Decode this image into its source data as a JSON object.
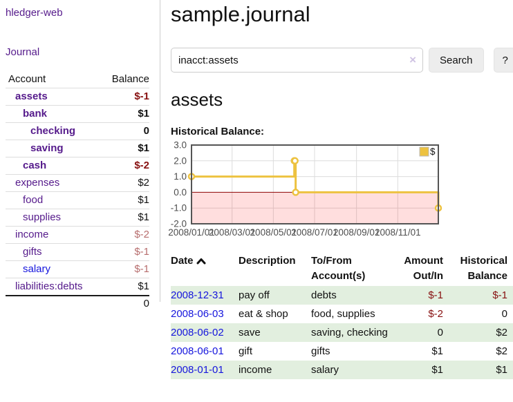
{
  "colors": {
    "purple": "#551a8b",
    "link_blue": "#1515dd",
    "negative_strong": "#871010",
    "negative_soft": "#b76e6e",
    "row_green": "#e2efdf",
    "chart_line": "#edc240",
    "chart_border": "#545454",
    "chart_grid": "#dcdcdc",
    "chart_zero_line": "#8b0000",
    "chart_negative_fill": "rgba(255,0,0,0.13)",
    "chart_tick_text": "#4d4d4d"
  },
  "sidebar": {
    "app_title": "hledger-web",
    "journal_label": "Journal",
    "table": {
      "headers": {
        "account": "Account",
        "balance": "Balance"
      },
      "rows": [
        {
          "name": "assets",
          "indent": 1,
          "bold": true,
          "balance": "$-1",
          "negative": true,
          "soft": false,
          "blue": false
        },
        {
          "name": "bank",
          "indent": 2,
          "bold": true,
          "balance": "$1",
          "negative": false,
          "soft": false,
          "blue": false
        },
        {
          "name": "checking",
          "indent": 3,
          "bold": true,
          "balance": "0",
          "negative": false,
          "soft": false,
          "blue": false
        },
        {
          "name": "saving",
          "indent": 3,
          "bold": true,
          "balance": "$1",
          "negative": false,
          "soft": false,
          "blue": false
        },
        {
          "name": "cash",
          "indent": 2,
          "bold": true,
          "balance": "$-2",
          "negative": true,
          "soft": false,
          "blue": false
        },
        {
          "name": "expenses",
          "indent": 1,
          "bold": false,
          "balance": "$2",
          "negative": false,
          "soft": false,
          "blue": false
        },
        {
          "name": "food",
          "indent": 2,
          "bold": false,
          "balance": "$1",
          "negative": false,
          "soft": false,
          "blue": false
        },
        {
          "name": "supplies",
          "indent": 2,
          "bold": false,
          "balance": "$1",
          "negative": false,
          "soft": false,
          "blue": false
        },
        {
          "name": "income",
          "indent": 1,
          "bold": false,
          "balance": "$-2",
          "negative": true,
          "soft": true,
          "blue": false
        },
        {
          "name": "gifts",
          "indent": 2,
          "bold": false,
          "balance": "$-1",
          "negative": true,
          "soft": true,
          "blue": false
        },
        {
          "name": "salary",
          "indent": 2,
          "bold": false,
          "balance": "$-1",
          "negative": true,
          "soft": true,
          "blue": true
        },
        {
          "name": "liabilities:debts",
          "indent": 1,
          "bold": false,
          "balance": "$1",
          "negative": false,
          "soft": false,
          "blue": false
        }
      ],
      "total": "0"
    }
  },
  "main": {
    "title": "sample.journal",
    "account_heading": "assets",
    "chart_label": "Historical Balance:"
  },
  "search": {
    "value": "inacct:assets",
    "clear_icon": "×",
    "button_label": "Search",
    "help_label": "?"
  },
  "chart_data": {
    "type": "line",
    "title": "Historical Balance",
    "step": true,
    "legend": [
      {
        "label": "$",
        "color": "#edc240"
      }
    ],
    "legend_position": "top-right",
    "grid": true,
    "y_ticks": [
      "3.0",
      "2.0",
      "1.0",
      "0.0",
      "-1.0",
      "-2.0"
    ],
    "y_range": [
      -2,
      3
    ],
    "x_ticks": [
      {
        "label": "2008/01/01",
        "day": 0
      },
      {
        "label": "2008/03/01",
        "day": 60
      },
      {
        "label": "2008/05/01",
        "day": 121
      },
      {
        "label": "2008/07/01",
        "day": 182
      },
      {
        "label": "2008/09/01",
        "day": 244
      },
      {
        "label": "2008/11/01",
        "day": 305
      }
    ],
    "x_range_days": [
      0,
      365
    ],
    "negative_region_shaded": true,
    "points": [
      {
        "date": "2008-01-01",
        "day": 0,
        "value": 1
      },
      {
        "date": "2008-06-01",
        "day": 152,
        "value": 2
      },
      {
        "date": "2008-06-02",
        "day": 153,
        "value": 2
      },
      {
        "date": "2008-06-03",
        "day": 154,
        "value": 0
      },
      {
        "date": "2008-12-31",
        "day": 365,
        "value": -1
      }
    ]
  },
  "register": {
    "headers": {
      "date": "Date",
      "description": "Description",
      "tofrom1": "To/From",
      "tofrom2": "Account(s)",
      "amount1": "Amount",
      "amount2": "Out/In",
      "balance1": "Historical",
      "balance2": "Balance"
    },
    "rows": [
      {
        "date": "2008-12-31",
        "description": "pay off",
        "accounts": "debts",
        "amount": "$-1",
        "amount_negative": true,
        "balance": "$-1",
        "balance_negative": true
      },
      {
        "date": "2008-06-03",
        "description": "eat & shop",
        "accounts": "food, supplies",
        "amount": "$-2",
        "amount_negative": true,
        "balance": "0",
        "balance_negative": false
      },
      {
        "date": "2008-06-02",
        "description": "save",
        "accounts": "saving, checking",
        "amount": "0",
        "amount_negative": false,
        "balance": "$2",
        "balance_negative": false
      },
      {
        "date": "2008-06-01",
        "description": "gift",
        "accounts": "gifts",
        "amount": "$1",
        "amount_negative": false,
        "balance": "$2",
        "balance_negative": false
      },
      {
        "date": "2008-01-01",
        "description": "income",
        "accounts": "salary",
        "amount": "$1",
        "amount_negative": false,
        "balance": "$1",
        "balance_negative": false
      }
    ]
  }
}
